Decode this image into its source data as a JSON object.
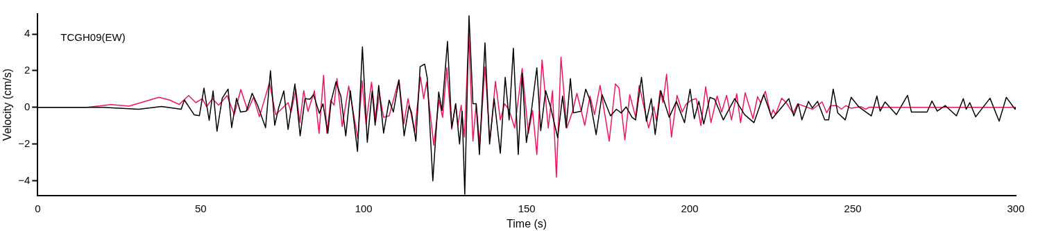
{
  "chart_data": {
    "type": "line",
    "xlabel": "Time (s)",
    "ylabel": "Velocity (cm/s)",
    "annotations": [
      "TCGH09(EW)"
    ],
    "xlim": [
      0,
      300
    ],
    "xticks": [
      0,
      50,
      100,
      150,
      200,
      250,
      300
    ],
    "ylim": [
      -4.8,
      5.1
    ],
    "yticks": [
      -4,
      -2,
      0,
      2,
      4
    ],
    "grid": false,
    "legend": false,
    "series": [
      {
        "color": "#000000",
        "x": [
          0,
          20,
          31,
          38,
          44,
          45,
          48,
          49.6,
          51,
          52.6,
          53.8,
          55,
          56.6,
          58.4,
          59.5,
          61,
          62.2,
          64,
          65.8,
          67.5,
          69.9,
          71.4,
          72.7,
          73.9,
          75.5,
          76.8,
          78.9,
          80.5,
          82,
          83.5,
          84.6,
          86.4,
          87.5,
          89,
          90,
          91.5,
          93,
          94.5,
          95.9,
          98.1,
          99.6,
          101.1,
          102.6,
          103.5,
          104.6,
          106.1,
          107.8,
          109.1,
          110.8,
          112.4,
          113.9,
          114.7,
          116,
          117.3,
          118.7,
          119.5,
          121.2,
          123,
          124,
          125.7,
          127,
          128.2,
          129.4,
          130.2,
          131,
          132.3,
          133.5,
          134.5,
          135.5,
          137.2,
          138.6,
          140,
          141.9,
          143.4,
          144.6,
          145.9,
          147.4,
          148.6,
          149.9,
          151.4,
          153.1,
          154.3,
          155.8,
          157.3,
          159.5,
          161,
          162.1,
          163.4,
          164.3,
          166.7,
          168.1,
          169.4,
          171.3,
          173.1,
          175.7,
          177.5,
          179,
          180.5,
          182.3,
          183.4,
          185.2,
          186.7,
          188.2,
          189.4,
          191.1,
          193.7,
          195.9,
          198.4,
          200.1,
          201.4,
          202.8,
          204.3,
          206.2,
          207.6,
          210.3,
          213.8,
          216.8,
          219.7,
          222.7,
          225.3,
          230.4,
          231.9,
          233.3,
          234.4,
          236.4,
          237.6,
          239.2,
          241.4,
          242.6,
          244,
          245.4,
          247.7,
          249.5,
          251.8,
          255.7,
          257.4,
          258.4,
          259.9,
          263.4,
          266.8,
          268,
          270.8,
          272.8,
          274.3,
          275.9,
          278.4,
          281.8,
          283.9,
          284.8,
          285.9,
          287.7,
          292.1,
          294.9,
          297.1,
          299.8,
          300
        ],
        "values": [
          0,
          0,
          -0.1,
          0.05,
          -0.1,
          0.4,
          -0.4,
          -0.45,
          1.05,
          -0.7,
          0.9,
          -1.3,
          0.5,
          1.0,
          -1.1,
          0.5,
          -0.25,
          -0.2,
          0.77,
          0.1,
          -1.1,
          2.0,
          -0.97,
          -0.03,
          0.9,
          -1.2,
          1.28,
          -1.55,
          0.48,
          0.45,
          0.7,
          -0.32,
          0.2,
          -1.4,
          0.33,
          1.4,
          0.6,
          -1.55,
          0.91,
          -2.4,
          3.3,
          -1.9,
          0.9,
          -0.97,
          1.2,
          -1.4,
          0.4,
          -0.25,
          1.48,
          -1.55,
          0.1,
          -0.3,
          -1.84,
          2.22,
          2.36,
          1.6,
          -4.0,
          0.84,
          -0.17,
          3.6,
          -1.1,
          0.2,
          -2.0,
          -0.2,
          -4.73,
          5.0,
          0.2,
          0.2,
          -2.57,
          3.52,
          -2.0,
          0.48,
          -2.5,
          1.64,
          -0.68,
          3.23,
          -2.57,
          1.86,
          -1.91,
          -0.25,
          2.16,
          -1.26,
          0.91,
          0.03,
          -1.65,
          0.62,
          -1.1,
          1.57,
          -0.3,
          -0.2,
          1.0,
          0.4,
          -1.48,
          0.7,
          -0.46,
          -0.1,
          -0.3,
          0.03,
          -0.54,
          -0.68,
          1.64,
          -0.75,
          0.48,
          -1.48,
          0.91,
          -0.54,
          0.33,
          -0.83,
          1.0,
          -0.61,
          0.33,
          -0.9,
          0.55,
          0.45,
          -0.68,
          0.48,
          -0.39,
          -0.83,
          0.7,
          -0.61,
          0.48,
          -0.46,
          0.2,
          -0.68,
          0.33,
          -0.03,
          0.33,
          -0.68,
          -0.68,
          1.0,
          -0.3,
          -0.68,
          0.55,
          0.04,
          -0.46,
          0.62,
          -0.2,
          0.3,
          -0.39,
          0.66,
          -0.25,
          -0.25,
          -0.25,
          0.35,
          -0.2,
          0.1,
          -0.46,
          0.48,
          -0.1,
          0.26,
          -0.51,
          0.5,
          -0.75,
          0.55,
          -0.1,
          0
        ]
      },
      {
        "color": "#f0145a",
        "x": [
          0,
          15,
          22.5,
          28,
          37.2,
          40.5,
          43.4,
          46.3,
          48.5,
          50.5,
          51.8,
          53.6,
          55.5,
          58.1,
          60.3,
          62.3,
          64.4,
          66.2,
          68,
          71.1,
          73,
          76.8,
          77.7,
          79.2,
          80.4,
          81.6,
          82.9,
          84.9,
          86.3,
          87.7,
          88.7,
          89.9,
          90.9,
          91.8,
          93.4,
          95.4,
          98.2,
          99.5,
          100.7,
          102.4,
          103.7,
          104.8,
          106.1,
          107.8,
          110.8,
          112.3,
          113.6,
          115.6,
          117.4,
          118.4,
          119.3,
          121.5,
          123.1,
          124.2,
          125.5,
          127,
          128.2,
          128.9,
          129.9,
          130.9,
          132.2,
          133.5,
          134.5,
          135.6,
          137.2,
          138.7,
          140.4,
          141.9,
          143.2,
          144.5,
          146.3,
          148.6,
          150.5,
          151.8,
          153.1,
          154.7,
          156.6,
          157.9,
          159.1,
          160.5,
          162.3,
          164,
          165.4,
          167.8,
          169.4,
          170.8,
          172.5,
          175.3,
          177.2,
          178.3,
          180.1,
          181.6,
          183.4,
          184.5,
          187.4,
          189,
          189.8,
          190.9,
          191.8,
          192.9,
          194.4,
          196.1,
          197.7,
          198.8,
          200.6,
          202,
          203.4,
          204.9,
          206.5,
          208.4,
          209.8,
          211.3,
          212.8,
          214.4,
          215.6,
          217,
          219.4,
          220.8,
          221.7,
          223.2,
          224.9,
          225.6,
          226.3,
          228.2,
          229.6,
          231.7,
          233.1,
          235.5,
          237.7,
          240.6,
          242,
          243.2,
          245.1,
          246.5,
          247.9,
          249.4,
          252.5,
          254,
          255,
          260,
          300
        ],
        "values": [
          0,
          0,
          0.16,
          0.07,
          0.55,
          0.4,
          0.16,
          0.65,
          0.26,
          0.48,
          0.04,
          0.48,
          0.12,
          0.65,
          -0.39,
          0.98,
          -0.16,
          0.55,
          -0.51,
          1.35,
          -0.39,
          0.26,
          -0.25,
          0.98,
          -0.83,
          0.91,
          -0.22,
          0.91,
          -1.41,
          1.75,
          -1.41,
          0.4,
          0.12,
          1.57,
          -1.04,
          1.17,
          -1.7,
          1.46,
          -0.9,
          1.38,
          -0.75,
          0.77,
          -0.54,
          -0.46,
          1.52,
          -0.9,
          0.48,
          -1.33,
          1.67,
          0.48,
          1.38,
          -2.06,
          0.4,
          -0.54,
          2.16,
          -1.19,
          0.2,
          -0.97,
          0.12,
          -1.62,
          4.0,
          -1.84,
          0.2,
          -2.0,
          2.22,
          -1.84,
          1.42,
          -0.68,
          0.2,
          -0.1,
          -1.12,
          2.12,
          -1.41,
          -0.17,
          -2.57,
          2.59,
          -1.12,
          0.91,
          -3.8,
          2.74,
          -1.12,
          -0.25,
          0.77,
          -0.97,
          0.62,
          -0.39,
          1.2,
          -1.84,
          1.28,
          1.06,
          -1.77,
          0.7,
          -0.54,
          1.2,
          -1.12,
          0.04,
          -0.75,
          0.91,
          0.26,
          1.81,
          -1.62,
          0.66,
          -0.25,
          0.16,
          0.41,
          0.48,
          -0.99,
          1.13,
          -0.83,
          0.62,
          -0.25,
          0.66,
          -0.68,
          0.74,
          -0.83,
          0.8,
          -0.61,
          0.59,
          0.26,
          0.88,
          -0.46,
          -0.13,
          -0.39,
          0.5,
          0.26,
          -0.32,
          0.2,
          0.04,
          -0.1,
          0.3,
          -0.29,
          0.1,
          0.1,
          -0.09,
          0.1,
          -0.04,
          0.04,
          -0.1,
          0.01,
          0,
          0
        ]
      }
    ]
  }
}
